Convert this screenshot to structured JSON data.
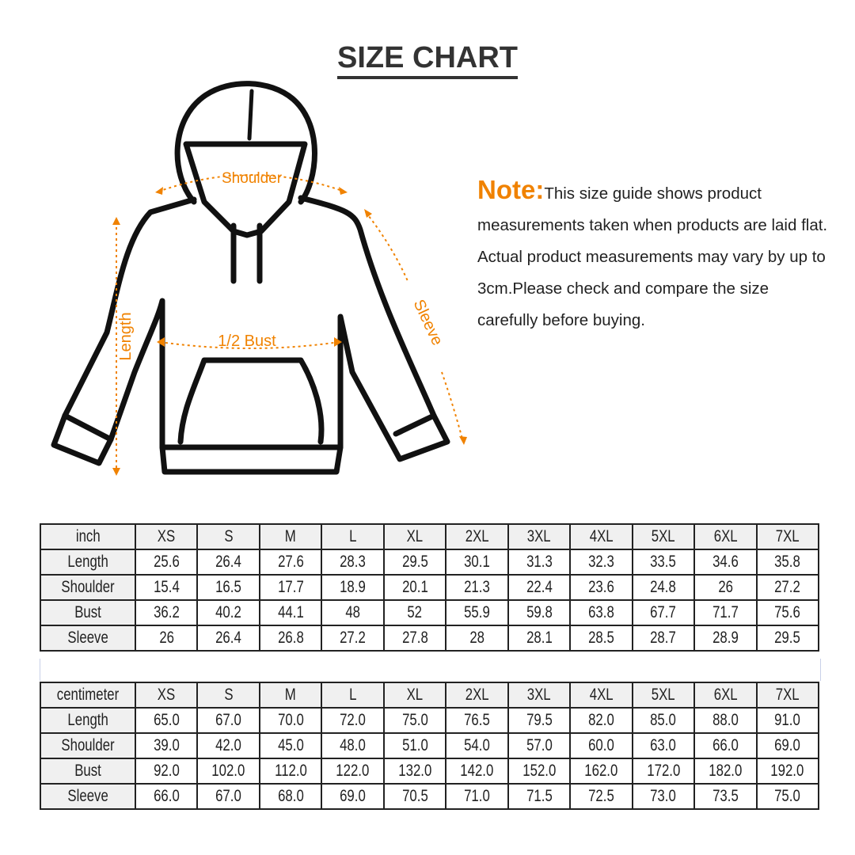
{
  "title": "SIZE CHART",
  "diagram": {
    "shoulder": "Shoulder",
    "length": "Length",
    "bust": "1/2 Bust",
    "sleeve": "Sleeve",
    "accent": "#f08200"
  },
  "note": {
    "label": "Note:",
    "text": "This size guide shows product measurements taken when products are laid flat. Actual product measurements may vary by up to 3cm.Please check and compare the size carefully before buying."
  },
  "sizes": [
    "XS",
    "S",
    "M",
    "L",
    "XL",
    "2XL",
    "3XL",
    "4XL",
    "5XL",
    "6XL",
    "7XL"
  ],
  "tables": [
    {
      "unit": "inch",
      "rows": [
        {
          "label": "Length",
          "values": [
            "25.6",
            "26.4",
            "27.6",
            "28.3",
            "29.5",
            "30.1",
            "31.3",
            "32.3",
            "33.5",
            "34.6",
            "35.8"
          ]
        },
        {
          "label": "Shoulder",
          "values": [
            "15.4",
            "16.5",
            "17.7",
            "18.9",
            "20.1",
            "21.3",
            "22.4",
            "23.6",
            "24.8",
            "26",
            "27.2"
          ]
        },
        {
          "label": "Bust",
          "values": [
            "36.2",
            "40.2",
            "44.1",
            "48",
            "52",
            "55.9",
            "59.8",
            "63.8",
            "67.7",
            "71.7",
            "75.6"
          ]
        },
        {
          "label": "Sleeve",
          "values": [
            "26",
            "26.4",
            "26.8",
            "27.2",
            "27.8",
            "28",
            "28.1",
            "28.5",
            "28.7",
            "28.9",
            "29.5"
          ]
        }
      ]
    },
    {
      "unit": "centimeter",
      "rows": [
        {
          "label": "Length",
          "values": [
            "65.0",
            "67.0",
            "70.0",
            "72.0",
            "75.0",
            "76.5",
            "79.5",
            "82.0",
            "85.0",
            "88.0",
            "91.0"
          ]
        },
        {
          "label": "Shoulder",
          "values": [
            "39.0",
            "42.0",
            "45.0",
            "48.0",
            "51.0",
            "54.0",
            "57.0",
            "60.0",
            "63.0",
            "66.0",
            "69.0"
          ]
        },
        {
          "label": "Bust",
          "values": [
            "92.0",
            "102.0",
            "112.0",
            "122.0",
            "132.0",
            "142.0",
            "152.0",
            "162.0",
            "172.0",
            "182.0",
            "192.0"
          ]
        },
        {
          "label": "Sleeve",
          "values": [
            "66.0",
            "67.0",
            "68.0",
            "69.0",
            "70.5",
            "71.0",
            "71.5",
            "72.5",
            "73.0",
            "73.5",
            "75.0"
          ]
        }
      ]
    }
  ]
}
